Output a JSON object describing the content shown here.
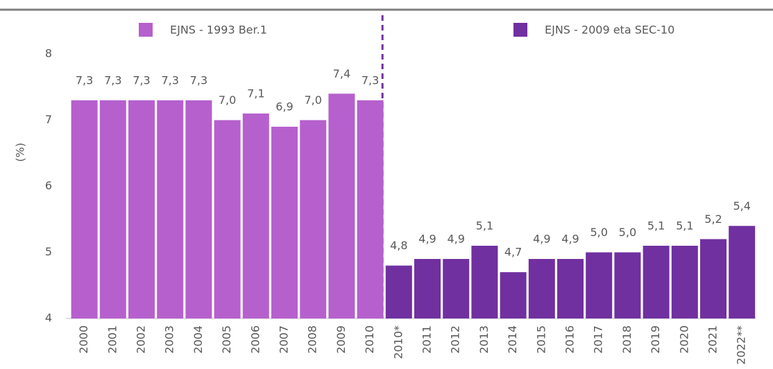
{
  "chart_data": {
    "type": "bar",
    "ylabel": "(%)",
    "categories": [
      "2000",
      "2001",
      "2002",
      "2003",
      "2004",
      "2005",
      "2006",
      "2007",
      "2008",
      "2009",
      "2010",
      "2010*",
      "2011",
      "2012",
      "2013",
      "2014",
      "2015",
      "2016",
      "2017",
      "2018",
      "2019",
      "2020",
      "2021",
      "2022**"
    ],
    "series": [
      {
        "name": "EJNS - 1993 Ber.1",
        "color": "#b660cd",
        "values": [
          7.3,
          7.3,
          7.3,
          7.3,
          7.3,
          7.0,
          7.1,
          6.9,
          7.0,
          7.4,
          7.3,
          null,
          null,
          null,
          null,
          null,
          null,
          null,
          null,
          null,
          null,
          null,
          null,
          null
        ],
        "value_labels": [
          "7,3",
          "7,3",
          "7,3",
          "7,3",
          "7,3",
          "7,0",
          "7,1",
          "6,9",
          "7,0",
          "7,4",
          "7,3",
          null,
          null,
          null,
          null,
          null,
          null,
          null,
          null,
          null,
          null,
          null,
          null,
          null
        ]
      },
      {
        "name": "EJNS - 2009 eta SEC-10",
        "color": "#7030a0",
        "values": [
          null,
          null,
          null,
          null,
          null,
          null,
          null,
          null,
          null,
          null,
          null,
          4.8,
          4.9,
          4.9,
          5.1,
          4.7,
          4.9,
          4.9,
          5.0,
          5.0,
          5.1,
          5.1,
          5.2,
          5.4
        ],
        "value_labels": [
          null,
          null,
          null,
          null,
          null,
          null,
          null,
          null,
          null,
          null,
          null,
          "4,8",
          "4,9",
          "4,9",
          "5,1",
          "4,7",
          "4,9",
          "4,9",
          "5,0",
          "5,0",
          "5,1",
          "5,1",
          "5,2",
          "5,4"
        ]
      }
    ],
    "ylim": [
      4,
      8
    ],
    "yticks": [
      4,
      5,
      6,
      7,
      8
    ],
    "grid": false
  }
}
